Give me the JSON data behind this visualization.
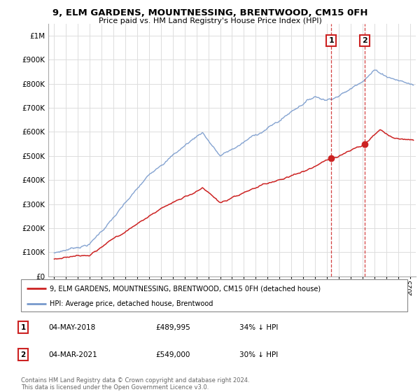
{
  "title": "9, ELM GARDENS, MOUNTNESSING, BRENTWOOD, CM15 0FH",
  "subtitle": "Price paid vs. HM Land Registry's House Price Index (HPI)",
  "ylim": [
    0,
    1050000
  ],
  "xlim_start": 1994.5,
  "xlim_end": 2025.5,
  "hpi_color": "#7799cc",
  "price_color": "#cc2222",
  "purchase1_date": 2018.37,
  "purchase1_price": 489995,
  "purchase1_label": "1",
  "purchase2_date": 2021.17,
  "purchase2_price": 549000,
  "purchase2_label": "2",
  "legend_entry1": "9, ELM GARDENS, MOUNTNESSING, BRENTWOOD, CM15 0FH (detached house)",
  "legend_entry2": "HPI: Average price, detached house, Brentwood",
  "table_row1": [
    "1",
    "04-MAY-2018",
    "£489,995",
    "34% ↓ HPI"
  ],
  "table_row2": [
    "2",
    "04-MAR-2021",
    "£549,000",
    "30% ↓ HPI"
  ],
  "footer": "Contains HM Land Registry data © Crown copyright and database right 2024.\nThis data is licensed under the Open Government Licence v3.0.",
  "background_color": "#ffffff",
  "grid_color": "#dddddd"
}
